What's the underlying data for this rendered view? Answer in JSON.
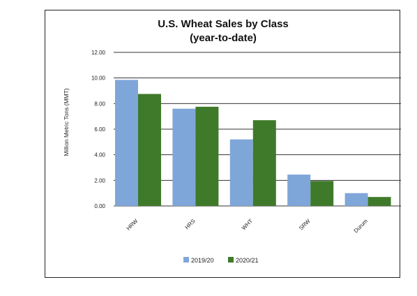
{
  "chart_data": {
    "type": "bar",
    "title": "U.S. Wheat Sales by Class",
    "subtitle": "(year-to-date)",
    "xlabel": "",
    "ylabel": "Million Metric Tons (MMT)",
    "categories": [
      "HRW",
      "HRS",
      "WHT",
      "SRW",
      "Durum"
    ],
    "series": [
      {
        "name": "2019/20",
        "color": "#7fa6d8",
        "values": [
          9.85,
          7.6,
          5.2,
          2.45,
          1.0
        ]
      },
      {
        "name": "2020/21",
        "color": "#3f7a2a",
        "values": [
          8.75,
          7.75,
          6.7,
          1.95,
          0.7
        ]
      }
    ],
    "ylim": [
      0,
      12
    ],
    "yticks": [
      "0.00",
      "2.00",
      "4.00",
      "6.00",
      "8.00",
      "10.00",
      "12.00"
    ],
    "grid": true,
    "legend": "bottom"
  }
}
